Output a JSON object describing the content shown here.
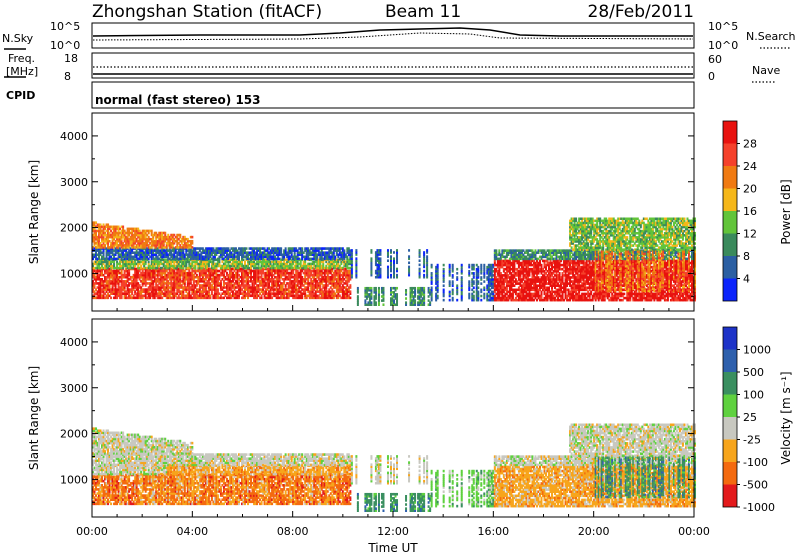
{
  "header": {
    "station": "Zhongshan Station (fitACF)",
    "beam": "Beam 11",
    "date": "28/Feb/2011"
  },
  "panels": {
    "nsky_label": "N.Sky",
    "nsky_ticks": [
      "10^5",
      "10^0"
    ],
    "nsearch_label": "N.Search",
    "nsearch_ticks": [
      "10^5",
      "10^0"
    ],
    "freq_label": "Freq.",
    "freq_unit": "[MHz]",
    "freq_ticks": [
      "18",
      "8"
    ],
    "nave_label": "Nave",
    "nave_ticks": [
      "60",
      "0"
    ],
    "cpid_label": "CPID",
    "cpid_text": "normal (fast stereo) 153"
  },
  "colors": {
    "power": [
      "#0b24fb",
      "#2b5fa3",
      "#3a8a5c",
      "#62c43a",
      "#f5b71a",
      "#f07a12",
      "#f5412b",
      "#e8120f"
    ],
    "velocity": [
      "#e31a1c",
      "#f46a0f",
      "#f7a51c",
      "#c8c8c0",
      "#5fd13f",
      "#3a8f60",
      "#2e60ad",
      "#1d33c8"
    ]
  },
  "chart_data": [
    {
      "type": "heatmap",
      "quantity": "Power",
      "ylabel": "Slant Range [km]",
      "yticks": [
        "1000",
        "2000",
        "3000",
        "4000"
      ],
      "ylim": [
        180,
        4500
      ],
      "xlim": [
        0,
        24
      ],
      "colorbar_label": "Power [dB]",
      "colorbar_ticks": [
        "4",
        "8",
        "12",
        "16",
        "20",
        "24",
        "28"
      ]
    },
    {
      "type": "heatmap",
      "quantity": "Velocity",
      "ylabel": "Slant Range [km]",
      "yticks": [
        "1000",
        "2000",
        "3000",
        "4000"
      ],
      "ylim": [
        180,
        4500
      ],
      "xlim": [
        0,
        24
      ],
      "xlabel": "Time UT",
      "xticks": [
        "00:00",
        "04:00",
        "08:00",
        "12:00",
        "16:00",
        "20:00",
        "00:00"
      ],
      "colorbar_label": "Velocity [m s⁻¹]",
      "colorbar_ticks": [
        "1000",
        "500",
        "100",
        "25",
        "-25",
        "-100",
        "-500",
        "-1000"
      ]
    }
  ]
}
